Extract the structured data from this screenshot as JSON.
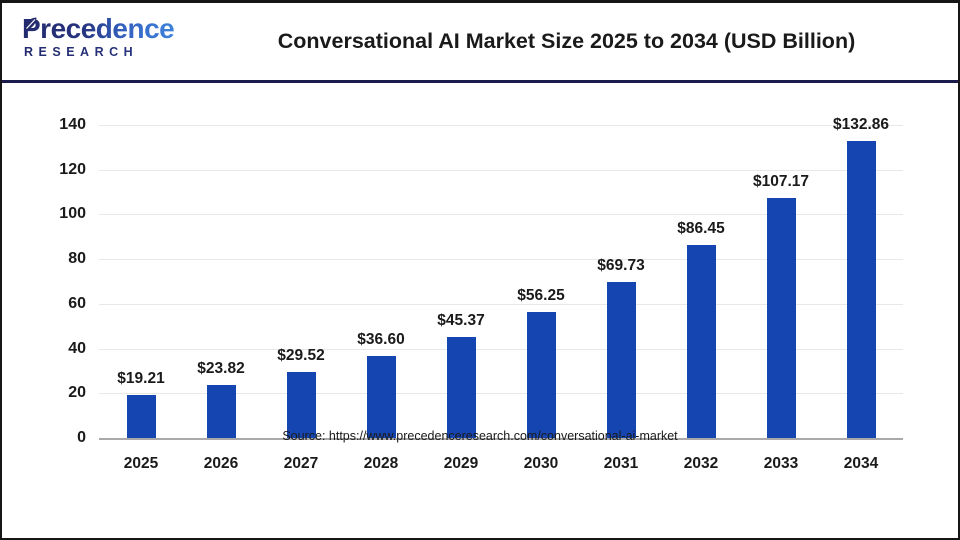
{
  "header": {
    "logo": {
      "line1": "Precedence",
      "line2": "RESEARCH"
    },
    "title": "Conversational AI Market Size 2025 to 2034 (USD Billion)"
  },
  "chart_data": {
    "type": "bar",
    "title": "Conversational AI Market Size 2025 to 2034 (USD Billion)",
    "categories": [
      "2025",
      "2026",
      "2027",
      "2028",
      "2029",
      "2030",
      "2031",
      "2032",
      "2033",
      "2034"
    ],
    "values": [
      19.21,
      23.82,
      29.52,
      36.6,
      45.37,
      56.25,
      69.73,
      86.45,
      107.17,
      132.86
    ],
    "value_labels": [
      "$19.21",
      "$23.82",
      "$29.52",
      "$36.60",
      "$45.37",
      "$56.25",
      "$69.73",
      "$86.45",
      "$107.17",
      "$132.86"
    ],
    "xlabel": "",
    "ylabel": "",
    "ylim": [
      0,
      140
    ],
    "yticks": [
      0,
      20,
      40,
      60,
      80,
      100,
      120,
      140
    ],
    "grid": true,
    "legend": "none",
    "bar_color": "#1545b0"
  },
  "footer": {
    "source": "Source: https://www.precedenceresearch.com/conversational-ai-market"
  },
  "colors": {
    "bar": "#1545b0",
    "navy_accent": "#1b1b4e",
    "gridline": "#e8e8e8",
    "axis_line": "#a9a9a9",
    "text": "#1a1a1a"
  }
}
